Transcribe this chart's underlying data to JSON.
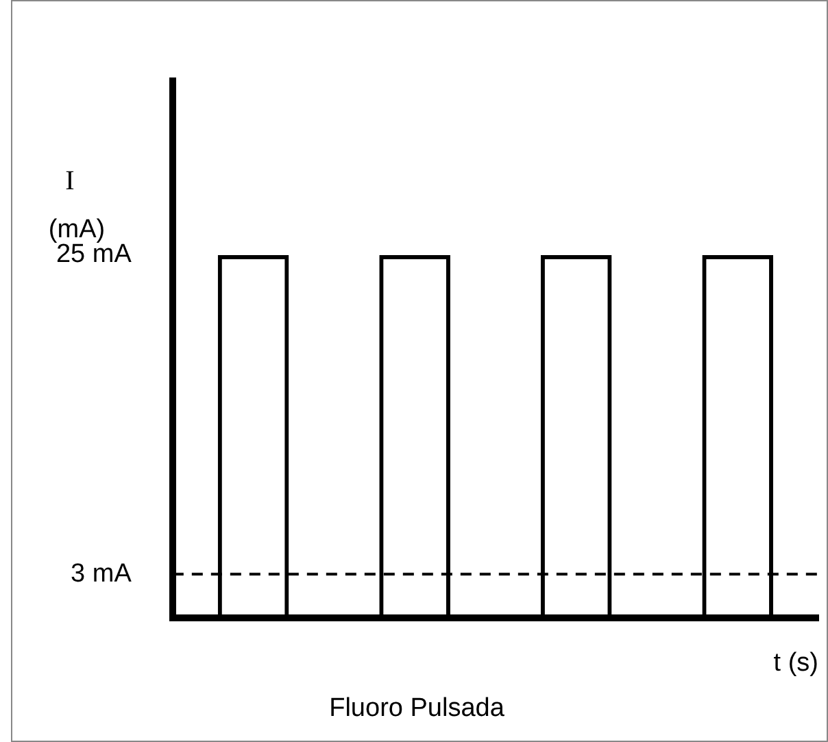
{
  "chart_data": {
    "type": "bar",
    "title": "Fluoro Pulsada",
    "xlabel": "t (s)",
    "ylabel": "I (mA)",
    "categories": [
      null,
      null,
      null,
      null
    ],
    "values": [
      25,
      25,
      25,
      25
    ],
    "color": "#000000",
    "ylim": [
      0,
      37
    ],
    "yticks": [
      {
        "value": 3,
        "label": "3 mA"
      },
      {
        "value": 25,
        "label": "25 mA"
      }
    ],
    "ref_lines": [
      {
        "axis": "y",
        "value": 3,
        "label": null,
        "color": "#000000",
        "line_style": "dashed"
      }
    ],
    "grid": false,
    "legend": false
  }
}
